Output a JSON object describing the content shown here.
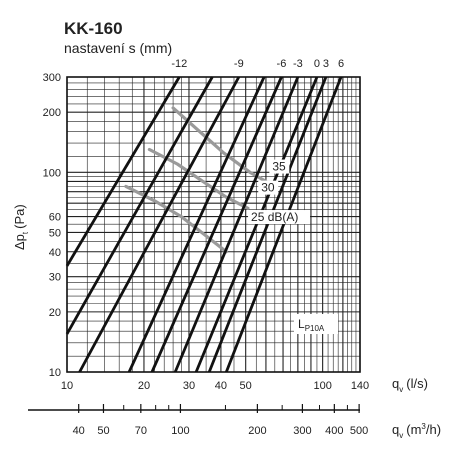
{
  "chart_data": {
    "type": "line",
    "title": "KK-160",
    "subtitle": "nastavení s (mm)",
    "x_label": "q",
    "x_label_sub": "v",
    "x_label_unit": "(l/s)",
    "x2_label": "q",
    "x2_label_sub": "v",
    "x2_label_unit_pre": "(m",
    "x2_label_unit_sup": "3",
    "x2_label_unit_post": "/h)",
    "y_label": "Δp",
    "y_label_sub": "t",
    "y_label_unit": "(Pa)",
    "x_scale": "log",
    "y_scale": "log",
    "xlim": [
      10,
      140
    ],
    "ylim": [
      10,
      300
    ],
    "grid": true,
    "x_ticks": [
      10,
      20,
      30,
      40,
      50,
      60,
      70,
      80,
      90,
      100,
      120,
      140
    ],
    "x_tick_labels": [
      "10",
      "20",
      "30",
      "40",
      "50",
      "",
      "",
      "",
      "",
      "100",
      "",
      "140"
    ],
    "x2_ticks": [
      40,
      50,
      70,
      100,
      200,
      300,
      400,
      500
    ],
    "x2_tick_labels": [
      "40",
      "50",
      "70",
      "100",
      "200",
      "300",
      "400",
      "500"
    ],
    "x2_minor_ticks": [
      60,
      80,
      90,
      150,
      250,
      350,
      450
    ],
    "y_ticks": [
      10,
      20,
      30,
      40,
      50,
      60,
      70,
      80,
      90,
      100,
      200,
      300
    ],
    "y_tick_labels": [
      "10",
      "20",
      "30",
      "40",
      "50",
      "60",
      "",
      "",
      "",
      "100",
      "200",
      "300"
    ],
    "settings_labels": [
      "-12",
      "-9",
      "-6",
      "-3",
      "0",
      "3",
      "6"
    ],
    "series": [
      {
        "name": "-12",
        "points": [
          [
            10,
            34
          ],
          [
            27.5,
            300
          ]
        ]
      },
      {
        "name": "",
        "points": [
          [
            10,
            15.5
          ],
          [
            37,
            300
          ]
        ]
      },
      {
        "name": "-9",
        "points": [
          [
            11.2,
            10
          ],
          [
            47,
            300
          ]
        ]
      },
      {
        "name": "",
        "points": [
          [
            17.5,
            10
          ],
          [
            59,
            300
          ]
        ]
      },
      {
        "name": "-6",
        "points": [
          [
            21.5,
            10
          ],
          [
            69,
            300
          ]
        ]
      },
      {
        "name": "-3",
        "points": [
          [
            26.5,
            10
          ],
          [
            80,
            300
          ]
        ]
      },
      {
        "name": "0",
        "points": [
          [
            32,
            10
          ],
          [
            95,
            300
          ]
        ]
      },
      {
        "name": "3",
        "points": [
          [
            36,
            10
          ],
          [
            103,
            300
          ]
        ]
      },
      {
        "name": "6",
        "points": [
          [
            42,
            10
          ],
          [
            118,
            300
          ]
        ]
      }
    ],
    "noise_curves": [
      {
        "name": "35",
        "points": [
          [
            26,
            210
          ],
          [
            33,
            160
          ],
          [
            41,
            125
          ],
          [
            52,
            100
          ],
          [
            60,
            90
          ]
        ]
      },
      {
        "name": "30",
        "points": [
          [
            21,
            130
          ],
          [
            27,
            110
          ],
          [
            34,
            90
          ],
          [
            42,
            75
          ],
          [
            51,
            66
          ]
        ]
      },
      {
        "name": "25 dB(A)",
        "points": [
          [
            17,
            85
          ],
          [
            22,
            72
          ],
          [
            28,
            60
          ],
          [
            35,
            48
          ],
          [
            42,
            40
          ]
        ]
      }
    ],
    "noise_labels": [
      "35",
      "30",
      "25 dB(A)"
    ],
    "annotation_main": "L",
    "annotation_sub": "P10A"
  }
}
